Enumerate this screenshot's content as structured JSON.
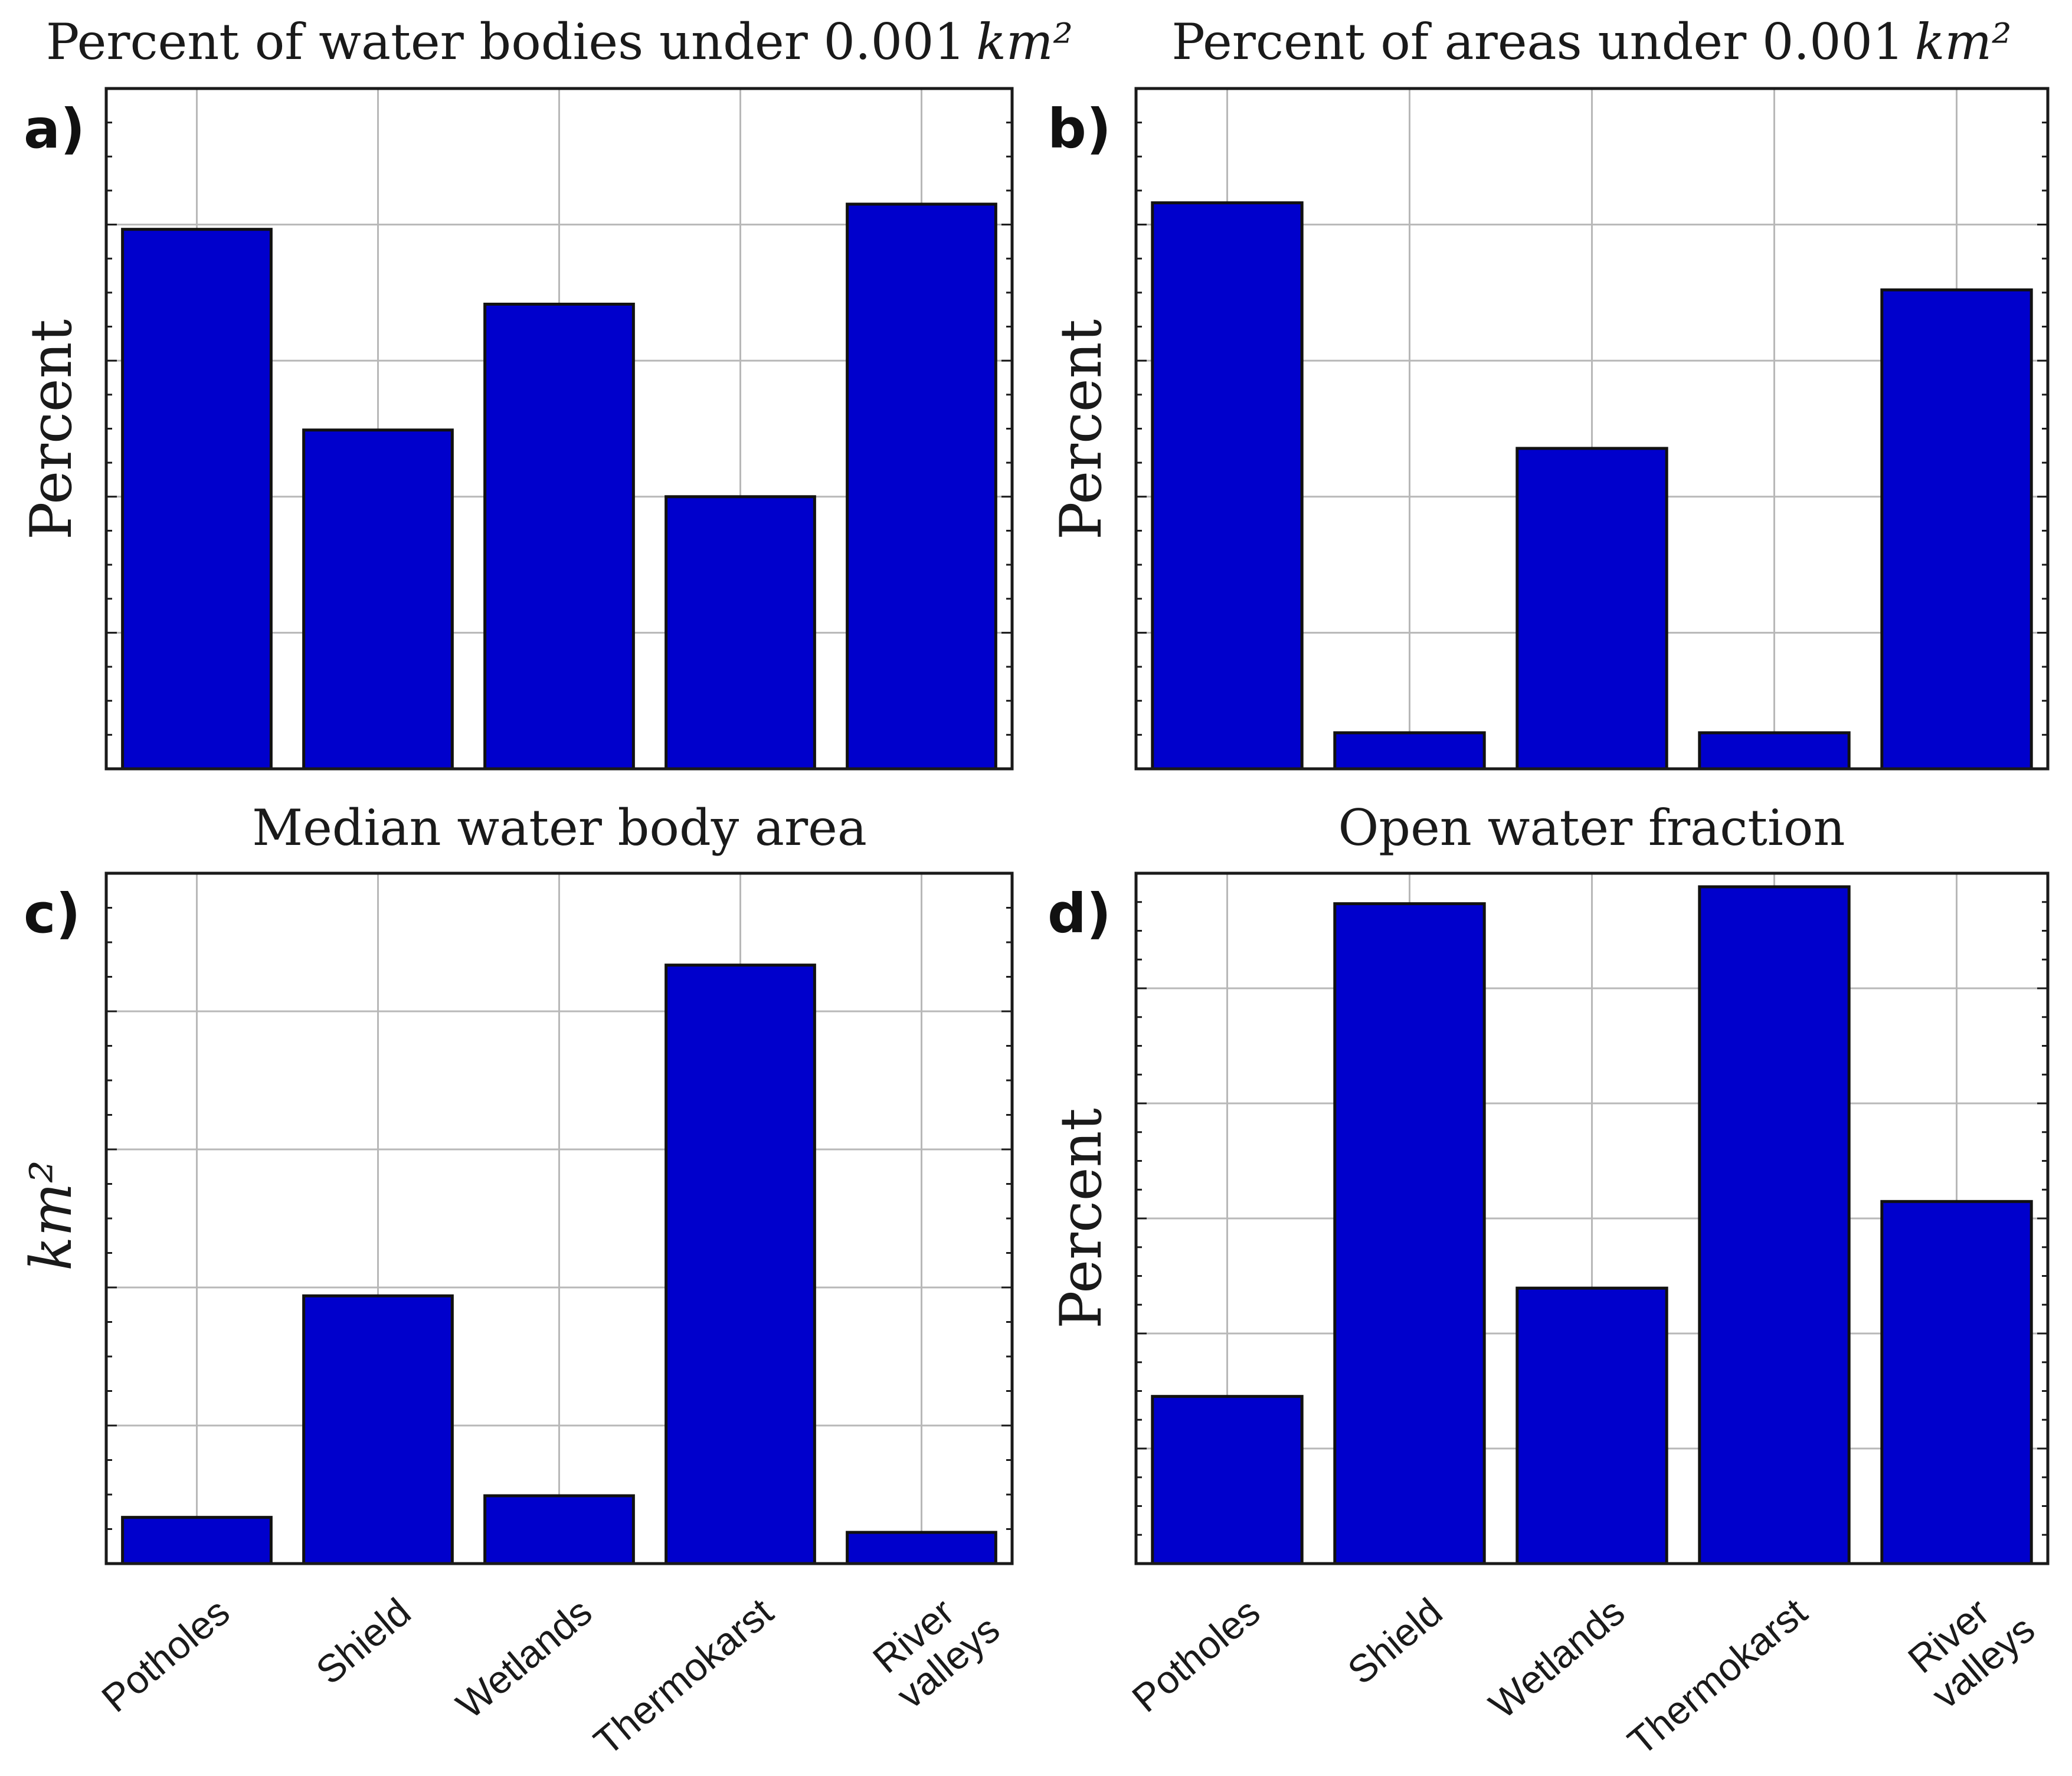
{
  "figure": {
    "category_labels": [
      "Potholes",
      "Shield",
      "Wetlands",
      "Thermokarst",
      "River\nvalleys"
    ],
    "bar_color": "#0000cc"
  },
  "chart_data": [
    {
      "panel": "a)",
      "type": "bar",
      "title": "Percent of water bodies under 0.001",
      "title_unit": "km²",
      "ylabel": "Percent",
      "categories": [
        "Potholes",
        "Shield",
        "Wetlands",
        "Thermokarst",
        "River valleys"
      ],
      "values": [
        0.793,
        0.498,
        0.683,
        0.4,
        0.83
      ],
      "ylim": [
        0,
        1
      ],
      "grid": true
    },
    {
      "panel": "b)",
      "type": "bar",
      "title": "Percent of areas under 0.001",
      "title_unit": "km²",
      "ylabel": "Percent",
      "categories": [
        "Potholes",
        "Shield",
        "Wetlands",
        "Thermokarst",
        "River valleys"
      ],
      "values": [
        0.832,
        0.053,
        0.471,
        0.053,
        0.704
      ],
      "ylim": [
        0,
        1
      ],
      "grid": true
    },
    {
      "panel": "c)",
      "type": "bar",
      "title": "Median water body area",
      "ylabel": "km²",
      "categories": [
        "Potholes",
        "Shield",
        "Wetlands",
        "Thermokarst",
        "River valleys"
      ],
      "values": [
        0.077,
        0.446,
        0.113,
        0.997,
        0.052
      ],
      "ylim": [
        0,
        1.15
      ],
      "grid": true
    },
    {
      "panel": "d)",
      "type": "bar",
      "title": "Open water fraction",
      "ylabel": "Percent",
      "categories": [
        "Potholes",
        "Shield",
        "Wetlands",
        "Thermokarst",
        "River valleys"
      ],
      "values": [
        0.247,
        0.975,
        0.407,
        1.0,
        0.535
      ],
      "ylim": [
        0,
        1.02
      ],
      "grid": true
    }
  ]
}
